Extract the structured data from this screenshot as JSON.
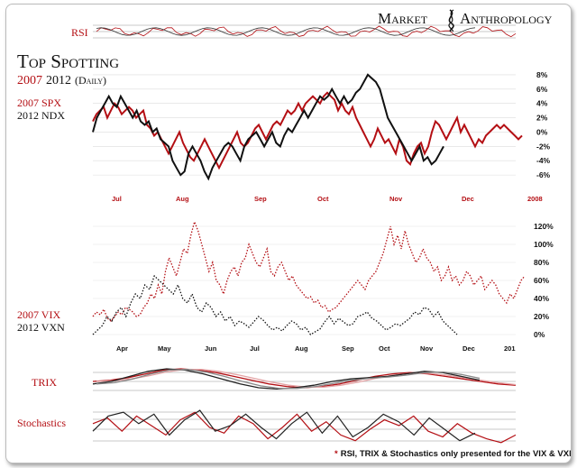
{
  "brand": {
    "left": "Market",
    "right": "Anthropology"
  },
  "title": "Top Spotting",
  "subtitle": {
    "y1": "2007",
    "y2": "2012",
    "tail": "(Daily)"
  },
  "colors": {
    "red": "#b40f14",
    "black": "#111111",
    "grid": "#c9c9c9"
  },
  "labels": {
    "rsi": "RSI",
    "spx": "2007 SPX",
    "ndx": "2012 NDX",
    "vix": "2007 VIX",
    "vxn": "2012 VXN",
    "trix": "TRIX",
    "stoch": "Stochastics",
    "footnote_star": "*",
    "footnote": "RSI, TRIX & Stochastics only presented for the VIX & VXN"
  },
  "chart_data": [
    {
      "type": "line",
      "title": "2007 SPX vs 2012 NDX",
      "y_ticks": [
        "8%",
        "6%",
        "4%",
        "2%",
        "0%",
        "-2%",
        "-4%",
        "-6%"
      ],
      "ylim": [
        -8,
        9
      ],
      "x_ticks": [
        "Jul",
        "Aug",
        "Sep",
        "Oct",
        "Nov",
        "Dec",
        "2008"
      ],
      "series": [
        {
          "name": "2007 SPX",
          "color": "red",
          "values": [
            1.5,
            2.5,
            3,
            3.5,
            2,
            3,
            4,
            3.5,
            2.5,
            3,
            3.5,
            3,
            2,
            2.5,
            3,
            1,
            0.5,
            -0.5,
            0,
            -1,
            -2,
            -3,
            -2,
            -1,
            0,
            -1.5,
            -2.5,
            -3.5,
            -4,
            -3,
            -2,
            -1,
            -2,
            -3,
            -4,
            -5,
            -4,
            -3,
            -2,
            -1,
            0,
            -1.5,
            -2,
            -1.5,
            -0.5,
            0.5,
            1,
            0,
            -1,
            0,
            1,
            1.5,
            1,
            2,
            3,
            2.5,
            3,
            4,
            3,
            4,
            4.5,
            5,
            4.5,
            4,
            5,
            5.5,
            5,
            4.5,
            3,
            4,
            3,
            2.5,
            3.5,
            2,
            1,
            0,
            -1,
            -2,
            -1,
            0.5,
            -0.5,
            -1.5,
            -1,
            -2,
            -3,
            -1,
            -2,
            -4,
            -4.5,
            -3,
            -2,
            -1.5,
            -3,
            -2,
            0,
            1.5,
            1,
            0,
            -1,
            0,
            1,
            2,
            0,
            1,
            0,
            -1,
            -2,
            -1,
            -1.5,
            -0.5,
            0,
            0.5,
            1,
            0.5,
            1,
            0.5,
            0,
            -0.5,
            -1,
            -0.5
          ]
        },
        {
          "name": "2012 NDX",
          "color": "black",
          "values": [
            0,
            2,
            3,
            4,
            5,
            4,
            3.5,
            5,
            4,
            3,
            2,
            3,
            1.5,
            1,
            1.5,
            0,
            0.5,
            -1,
            -1.5,
            -2,
            -4,
            -5,
            -6,
            -5.5,
            -3,
            -2,
            -3,
            -4,
            -5.5,
            -6.5,
            -5,
            -4,
            -3,
            -2,
            -1.5,
            -2,
            -3,
            -4,
            -2,
            -1,
            -0.5,
            0,
            -1,
            -2,
            -1,
            0,
            -1.5,
            -2,
            -0.5,
            0.5,
            0,
            1,
            2,
            3,
            2,
            3,
            4,
            5,
            4.5,
            5,
            6,
            5,
            4,
            5,
            4,
            4.5,
            5.5,
            6,
            7,
            8,
            7.5,
            7,
            6,
            4,
            2,
            1,
            0,
            -1,
            -2,
            -3,
            -4,
            -3,
            -2,
            -4,
            -3.5,
            -4.5,
            -4,
            -3,
            -2
          ]
        }
      ]
    },
    {
      "type": "line",
      "title": "2007 VIX vs 2012 VXN",
      "y_ticks": [
        "120%",
        "100%",
        "80%",
        "60%",
        "40%",
        "20%",
        "0%"
      ],
      "ylim": [
        -5,
        130
      ],
      "x_ticks": [
        "Apr",
        "May",
        "Jun",
        "Jul",
        "Aug",
        "Sep",
        "Oct",
        "Nov",
        "Dec",
        "201"
      ],
      "series": [
        {
          "name": "2007 VIX",
          "color": "red",
          "values": [
            20,
            25,
            22,
            28,
            18,
            15,
            20,
            25,
            22,
            30,
            28,
            25,
            20,
            22,
            30,
            35,
            45,
            40,
            55,
            45,
            70,
            85,
            75,
            65,
            80,
            95,
            90,
            110,
            125,
            115,
            100,
            85,
            70,
            80,
            60,
            55,
            45,
            60,
            70,
            75,
            65,
            80,
            85,
            100,
            90,
            80,
            75,
            85,
            95,
            70,
            65,
            75,
            80,
            70,
            60,
            65,
            55,
            50,
            45,
            40,
            42,
            35,
            38,
            30,
            32,
            25,
            28,
            30,
            35,
            40,
            45,
            50,
            55,
            60,
            55,
            50,
            60,
            65,
            70,
            80,
            90,
            105,
            120,
            100,
            110,
            95,
            115,
            100,
            90,
            80,
            85,
            95,
            85,
            80,
            70,
            75,
            60,
            65,
            75,
            60,
            65,
            55,
            60,
            70,
            65,
            55,
            60,
            65,
            50,
            55,
            60,
            55,
            45,
            40,
            35,
            45,
            40,
            50,
            60,
            65
          ]
        },
        {
          "name": "2012 VXN",
          "color": "black",
          "values": [
            0,
            5,
            10,
            20,
            15,
            25,
            30,
            20,
            35,
            45,
            40,
            55,
            50,
            65,
            60,
            55,
            50,
            45,
            55,
            40,
            35,
            45,
            30,
            25,
            35,
            30,
            20,
            25,
            15,
            20,
            10,
            15,
            12,
            8,
            14,
            20,
            16,
            10,
            5,
            8,
            4,
            10,
            15,
            12,
            5,
            8,
            0,
            3,
            6,
            14,
            20,
            12,
            18,
            14,
            10,
            12,
            20,
            22,
            25,
            18,
            15,
            10,
            5,
            8,
            12,
            10,
            14,
            18,
            25,
            22,
            30,
            28,
            20,
            25,
            15,
            10,
            5,
            0
          ]
        }
      ]
    },
    {
      "type": "line",
      "title": "TRIX",
      "series": [
        {
          "name": "TRIX 2007",
          "color": "red",
          "values": [
            0,
            0.1,
            0.3,
            0.6,
            0.9,
            1,
            0.9,
            0.7,
            0.4,
            0.1,
            -0.2,
            -0.4,
            -0.5,
            -0.4,
            -0.2,
            0.1,
            0.4,
            0.6,
            0.7,
            0.6,
            0.4,
            0.2,
            0,
            -0.2,
            -0.3
          ]
        },
        {
          "name": "TRIX 2012",
          "color": "black",
          "values": [
            -0.2,
            0,
            0.4,
            0.8,
            1,
            0.9,
            0.6,
            0.2,
            -0.2,
            -0.5,
            -0.6,
            -0.5,
            -0.3,
            0,
            0.2,
            0.3,
            0.4,
            0.6,
            0.8,
            0.7,
            0.4,
            0.1
          ]
        }
      ]
    },
    {
      "type": "line",
      "title": "Stochastics",
      "series": [
        {
          "name": "Stochastics 2007",
          "color": "red",
          "values": [
            60,
            75,
            40,
            80,
            55,
            30,
            70,
            90,
            50,
            35,
            80,
            60,
            20,
            50,
            85,
            40,
            65,
            30,
            15,
            45,
            70,
            55,
            80,
            40,
            25,
            60,
            35,
            20,
            10,
            30
          ]
        },
        {
          "name": "Stochastics 2012",
          "color": "black",
          "values": [
            40,
            80,
            90,
            60,
            85,
            30,
            70,
            95,
            40,
            55,
            85,
            50,
            20,
            60,
            90,
            35,
            80,
            25,
            50,
            85,
            65,
            30,
            75,
            45,
            15,
            35
          ]
        }
      ]
    }
  ]
}
